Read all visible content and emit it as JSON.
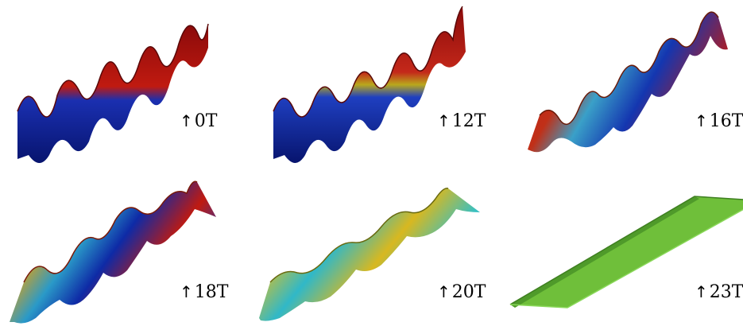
{
  "panels": [
    {
      "label": "0T",
      "arrow": "↑"
    },
    {
      "label": "12T",
      "arrow": "↑"
    },
    {
      "label": "16T",
      "arrow": "↑"
    },
    {
      "label": "18T",
      "arrow": "↑"
    },
    {
      "label": "20T",
      "arrow": "↑"
    },
    {
      "label": "23T",
      "arrow": "↑"
    }
  ],
  "colors": {
    "red": "#b40f0f",
    "blue": "#0a1f9c",
    "yellow": "#d9c21a",
    "cyan": "#2fb9c9",
    "green": "#6fbf3a"
  }
}
